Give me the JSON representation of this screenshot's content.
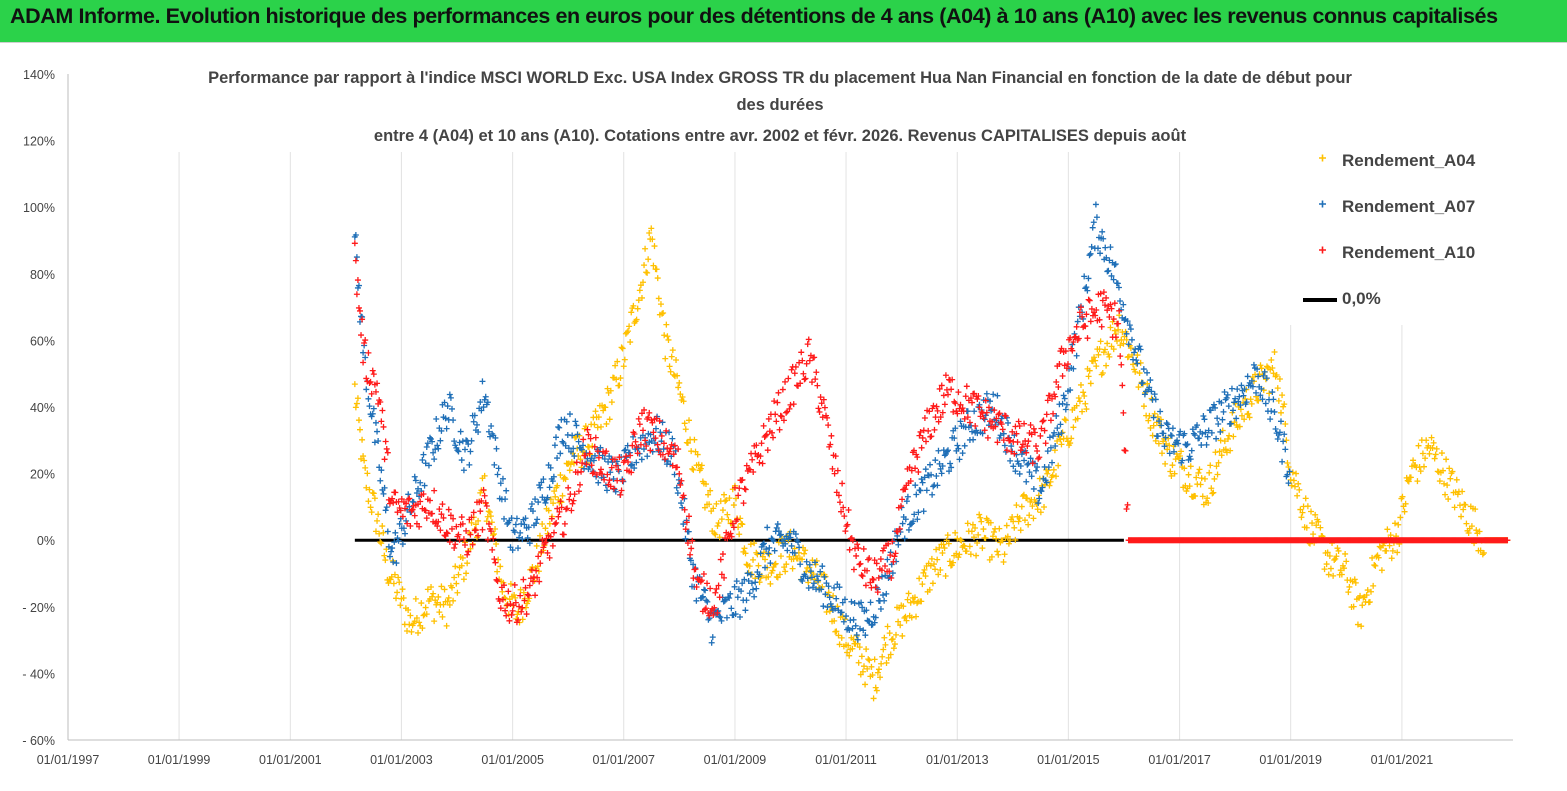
{
  "banner_title": "ADAM Informe. Evolution historique des performances en euros pour des détentions de 4 ans (A04) à 10 ans (A10) avec les revenus connus capitalisés",
  "chart_data": {
    "type": "scatter",
    "title_lines": [
      "Performance par rapport à l'indice MSCI WORLD Exc. USA Index GROSS TR  du placement Hua Nan Financial  en fonction de la date de début pour",
      "des durées",
      "entre 4 (A04) et 10 ans (A10). Cotations entre avr. 2002 et févr. 2026. Revenus CAPITALISES depuis août"
    ],
    "xlabel": "",
    "ylabel": "",
    "y_range": [
      -60,
      140
    ],
    "y_unit": "%",
    "y_ticks": [
      -60,
      -40,
      -20,
      0,
      20,
      40,
      60,
      80,
      100,
      120,
      140
    ],
    "y_tick_labels": [
      "- 60%",
      "- 40%",
      "- 20%",
      "0%",
      "20%",
      "40%",
      "60%",
      "80%",
      "100%",
      "120%",
      "140%"
    ],
    "x_range": [
      "1997-01-01",
      "2023-01-01"
    ],
    "x_tick_labels": [
      "01/01/1997",
      "01/01/1999",
      "01/01/2001",
      "01/01/2003",
      "01/01/2005",
      "01/01/2007",
      "01/01/2009",
      "01/01/2011",
      "01/01/2013",
      "01/01/2015",
      "01/01/2017",
      "01/01/2019",
      "01/01/2021"
    ],
    "grid": "vertical gridlines",
    "legend_position": "right",
    "marker": "+",
    "series": [
      {
        "name": "Rendement_A04",
        "color": "#ffc000",
        "points": [
          [
            "2002-03-01",
            45
          ],
          [
            "2002-05-01",
            20
          ],
          [
            "2002-08-01",
            5
          ],
          [
            "2002-10-01",
            -8
          ],
          [
            "2003-01-01",
            -18
          ],
          [
            "2003-03-01",
            -25
          ],
          [
            "2003-07-01",
            -18
          ],
          [
            "2003-11-01",
            -20
          ],
          [
            "2004-03-01",
            -5
          ],
          [
            "2004-07-01",
            15
          ],
          [
            "2004-11-01",
            -15
          ],
          [
            "2005-02-01",
            -22
          ],
          [
            "2005-06-01",
            -8
          ],
          [
            "2005-10-01",
            12
          ],
          [
            "2006-02-01",
            25
          ],
          [
            "2006-06-01",
            30
          ],
          [
            "2006-10-01",
            42
          ],
          [
            "2007-01-01",
            55
          ],
          [
            "2007-05-01",
            78
          ],
          [
            "2007-07-01",
            92
          ],
          [
            "2007-10-01",
            60
          ],
          [
            "2008-01-01",
            45
          ],
          [
            "2008-05-01",
            20
          ],
          [
            "2008-09-01",
            5
          ],
          [
            "2009-01-01",
            12
          ],
          [
            "2009-04-01",
            -5
          ],
          [
            "2009-08-01",
            -8
          ],
          [
            "2010-01-01",
            -3
          ],
          [
            "2010-06-01",
            -10
          ],
          [
            "2010-10-01",
            -20
          ],
          [
            "2011-01-01",
            -30
          ],
          [
            "2011-04-01",
            -35
          ],
          [
            "2011-07-01",
            -42
          ],
          [
            "2011-10-01",
            -30
          ],
          [
            "2012-03-01",
            -20
          ],
          [
            "2012-08-01",
            -8
          ],
          [
            "2013-01-01",
            -2
          ],
          [
            "2013-06-01",
            2
          ],
          [
            "2013-11-01",
            -3
          ],
          [
            "2014-03-01",
            8
          ],
          [
            "2014-08-01",
            15
          ],
          [
            "2014-12-01",
            30
          ],
          [
            "2015-04-01",
            42
          ],
          [
            "2015-08-01",
            55
          ],
          [
            "2015-12-01",
            65
          ],
          [
            "2016-03-01",
            55
          ],
          [
            "2016-07-01",
            38
          ],
          [
            "2016-11-01",
            25
          ],
          [
            "2017-03-01",
            20
          ],
          [
            "2017-07-01",
            15
          ],
          [
            "2017-11-01",
            30
          ],
          [
            "2018-03-01",
            40
          ],
          [
            "2018-07-01",
            48
          ],
          [
            "2018-10-01",
            52
          ],
          [
            "2019-01-01",
            22
          ],
          [
            "2019-05-01",
            5
          ],
          [
            "2019-09-01",
            -5
          ],
          [
            "2020-01-01",
            -10
          ],
          [
            "2020-04-01",
            -22
          ],
          [
            "2020-08-01",
            -5
          ],
          [
            "2020-12-01",
            2
          ],
          [
            "2021-03-01",
            20
          ],
          [
            "2021-07-01",
            28
          ],
          [
            "2021-11-01",
            18
          ],
          [
            "2022-03-01",
            8
          ],
          [
            "2022-07-01",
            0
          ],
          [
            "2022-12-01",
            0
          ]
        ]
      },
      {
        "name": "Rendement_A07",
        "color": "#1f6fb7",
        "points": [
          [
            "2002-03-01",
            90
          ],
          [
            "2002-05-01",
            55
          ],
          [
            "2002-08-01",
            25
          ],
          [
            "2002-11-01",
            -5
          ],
          [
            "2003-03-01",
            10
          ],
          [
            "2003-07-01",
            25
          ],
          [
            "2003-11-01",
            40
          ],
          [
            "2004-03-01",
            25
          ],
          [
            "2004-07-01",
            45
          ],
          [
            "2004-10-01",
            20
          ],
          [
            "2005-01-01",
            0
          ],
          [
            "2005-05-01",
            5
          ],
          [
            "2005-09-01",
            20
          ],
          [
            "2005-12-01",
            35
          ],
          [
            "2006-04-01",
            28
          ],
          [
            "2006-08-01",
            22
          ],
          [
            "2006-12-01",
            18
          ],
          [
            "2007-04-01",
            28
          ],
          [
            "2007-08-01",
            32
          ],
          [
            "2007-12-01",
            25
          ],
          [
            "2008-04-01",
            -10
          ],
          [
            "2008-08-01",
            -25
          ],
          [
            "2008-12-01",
            -20
          ],
          [
            "2009-04-01",
            -15
          ],
          [
            "2009-08-01",
            -2
          ],
          [
            "2010-01-01",
            0
          ],
          [
            "2010-05-01",
            -10
          ],
          [
            "2010-09-01",
            -15
          ],
          [
            "2011-01-01",
            -22
          ],
          [
            "2011-05-01",
            -25
          ],
          [
            "2011-09-01",
            -15
          ],
          [
            "2012-01-01",
            5
          ],
          [
            "2012-06-01",
            15
          ],
          [
            "2012-11-01",
            25
          ],
          [
            "2013-04-01",
            35
          ],
          [
            "2013-09-01",
            40
          ],
          [
            "2014-02-01",
            25
          ],
          [
            "2014-07-01",
            15
          ],
          [
            "2014-12-01",
            40
          ],
          [
            "2015-04-01",
            70
          ],
          [
            "2015-07-01",
            95
          ],
          [
            "2015-11-01",
            80
          ],
          [
            "2016-03-01",
            60
          ],
          [
            "2016-06-01",
            45
          ],
          [
            "2016-10-01",
            30
          ],
          [
            "2017-03-01",
            28
          ],
          [
            "2017-08-01",
            35
          ],
          [
            "2018-01-01",
            42
          ],
          [
            "2018-06-01",
            50
          ],
          [
            "2018-10-01",
            35
          ],
          [
            "2019-01-01",
            20
          ]
        ]
      },
      {
        "name": "Rendement_A10",
        "color": "#ff1a1a",
        "points": [
          [
            "2002-03-01",
            85
          ],
          [
            "2002-05-01",
            55
          ],
          [
            "2002-08-01",
            45
          ],
          [
            "2002-11-01",
            10
          ],
          [
            "2003-03-01",
            8
          ],
          [
            "2003-07-01",
            12
          ],
          [
            "2003-11-01",
            5
          ],
          [
            "2004-03-01",
            0
          ],
          [
            "2004-07-01",
            10
          ],
          [
            "2004-10-01",
            -15
          ],
          [
            "2005-01-01",
            -20
          ],
          [
            "2005-05-01",
            -15
          ],
          [
            "2005-09-01",
            0
          ],
          [
            "2006-01-01",
            10
          ],
          [
            "2006-05-01",
            28
          ],
          [
            "2006-09-01",
            22
          ],
          [
            "2007-01-01",
            18
          ],
          [
            "2007-05-01",
            35
          ],
          [
            "2007-09-01",
            30
          ],
          [
            "2008-01-01",
            22
          ],
          [
            "2008-05-01",
            -15
          ],
          [
            "2008-09-01",
            -18
          ],
          [
            "2009-01-01",
            10
          ],
          [
            "2009-05-01",
            22
          ],
          [
            "2009-09-01",
            35
          ],
          [
            "2010-01-01",
            45
          ],
          [
            "2010-05-01",
            55
          ],
          [
            "2010-08-01",
            40
          ],
          [
            "2010-11-01",
            18
          ],
          [
            "2011-03-01",
            -5
          ],
          [
            "2011-07-01",
            -12
          ],
          [
            "2011-11-01",
            -5
          ],
          [
            "2012-03-01",
            20
          ],
          [
            "2012-07-01",
            35
          ],
          [
            "2012-11-01",
            45
          ],
          [
            "2013-04-01",
            40
          ],
          [
            "2013-09-01",
            35
          ],
          [
            "2014-02-01",
            30
          ],
          [
            "2014-07-01",
            28
          ],
          [
            "2014-12-01",
            55
          ],
          [
            "2015-04-01",
            65
          ],
          [
            "2015-08-01",
            70
          ],
          [
            "2015-12-01",
            65
          ],
          [
            "2016-02-01",
            0
          ],
          [
            "2022-12-01",
            0
          ]
        ]
      },
      {
        "name": "0,0%",
        "color": "#000000",
        "type": "line",
        "points": [
          [
            "2002-03-01",
            0
          ],
          [
            "2016-01-01",
            0
          ]
        ]
      }
    ]
  }
}
